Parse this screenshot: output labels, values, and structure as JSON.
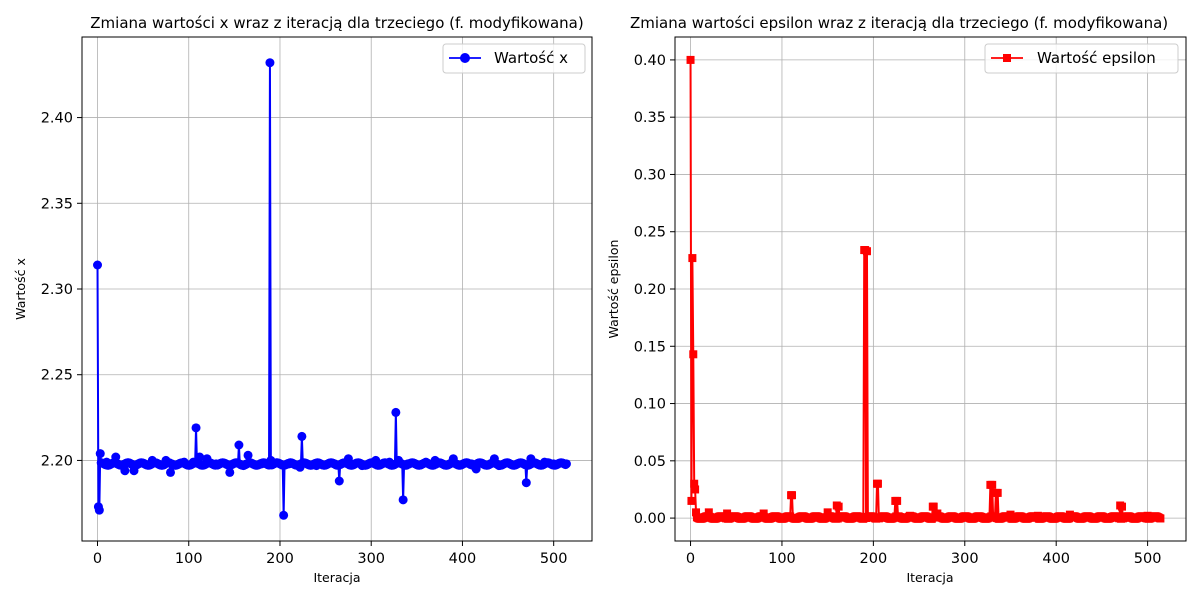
{
  "chart_data": [
    {
      "type": "line",
      "title": "Zmiana wartości x wraz z iteracją dla trzeciego (f. modyfikowana)",
      "xlabel": "Iteracja",
      "ylabel": "Wartość x",
      "xlim": [
        -17,
        542
      ],
      "ylim": [
        2.153,
        2.447
      ],
      "xticks": [
        0,
        100,
        200,
        300,
        400,
        500
      ],
      "yticks": [
        2.2,
        2.25,
        2.3,
        2.35,
        2.4
      ],
      "ytick_labels": [
        "2.20",
        "2.25",
        "2.30",
        "2.35",
        "2.40"
      ],
      "grid": true,
      "legend": "top-right",
      "baseline": 2.1979,
      "n": 515,
      "series": [
        {
          "name": "Wartość x",
          "color": "#0000ff",
          "marker": "circle",
          "x": [
            0,
            1,
            2,
            3,
            10,
            20,
            30,
            40,
            60,
            75,
            80,
            95,
            105,
            108,
            112,
            120,
            130,
            145,
            155,
            160,
            165,
            170,
            180,
            189,
            190,
            200,
            204,
            210,
            222,
            224,
            240,
            260,
            265,
            275,
            290,
            305,
            320,
            327,
            330,
            335,
            340,
            360,
            370,
            390,
            410,
            415,
            435,
            440,
            460,
            470,
            475,
            490,
            500,
            514
          ],
          "y": [
            2.314,
            2.173,
            2.171,
            2.204,
            2.199,
            2.202,
            2.194,
            2.194,
            2.2,
            2.2,
            2.193,
            2.199,
            2.199,
            2.219,
            2.202,
            2.201,
            2.198,
            2.193,
            2.209,
            2.197,
            2.203,
            2.198,
            2.198,
            2.432,
            2.2,
            2.198,
            2.168,
            2.198,
            2.196,
            2.214,
            2.197,
            2.198,
            2.188,
            2.201,
            2.197,
            2.2,
            2.199,
            2.228,
            2.2,
            2.177,
            2.198,
            2.199,
            2.2,
            2.201,
            2.198,
            2.195,
            2.201,
            2.197,
            2.198,
            2.187,
            2.201,
            2.199,
            2.198,
            2.198
          ]
        }
      ]
    },
    {
      "type": "line",
      "title": "Zmiana wartości epsilon wraz z iteracją dla trzeciego (f. modyfikowana)",
      "xlabel": "Iteracja",
      "ylabel": "Wartość epsilon",
      "xlim": [
        -17,
        542
      ],
      "ylim": [
        -0.02,
        0.42
      ],
      "xticks": [
        0,
        100,
        200,
        300,
        400,
        500
      ],
      "yticks": [
        0.0,
        0.05,
        0.1,
        0.15,
        0.2,
        0.25,
        0.3,
        0.35,
        0.4
      ],
      "ytick_labels": [
        "0.00",
        "0.05",
        "0.10",
        "0.15",
        "0.20",
        "0.25",
        "0.30",
        "0.35",
        "0.40"
      ],
      "grid": true,
      "legend": "top-right",
      "baseline": 0.0005,
      "n": 515,
      "series": [
        {
          "name": "Wartość epsilon",
          "color": "#ff0000",
          "marker": "square",
          "x": [
            0,
            1,
            2,
            3,
            4,
            5,
            6,
            20,
            40,
            80,
            110,
            111,
            150,
            160,
            162,
            190,
            191,
            193,
            204,
            205,
            224,
            226,
            240,
            265,
            266,
            270,
            328,
            330,
            334,
            336,
            350,
            380,
            415,
            470,
            472,
            500
          ],
          "y": [
            0.4,
            0.015,
            0.227,
            0.143,
            0.03,
            0.025,
            0.005,
            0.005,
            0.004,
            0.004,
            0.02,
            0.02,
            0.005,
            0.011,
            0.01,
            0.234,
            0.234,
            0.233,
            0.03,
            0.03,
            0.015,
            0.015,
            0.002,
            0.01,
            0.01,
            0.004,
            0.029,
            0.029,
            0.022,
            0.022,
            0.003,
            0.002,
            0.003,
            0.011,
            0.01,
            0.002
          ]
        }
      ]
    }
  ]
}
